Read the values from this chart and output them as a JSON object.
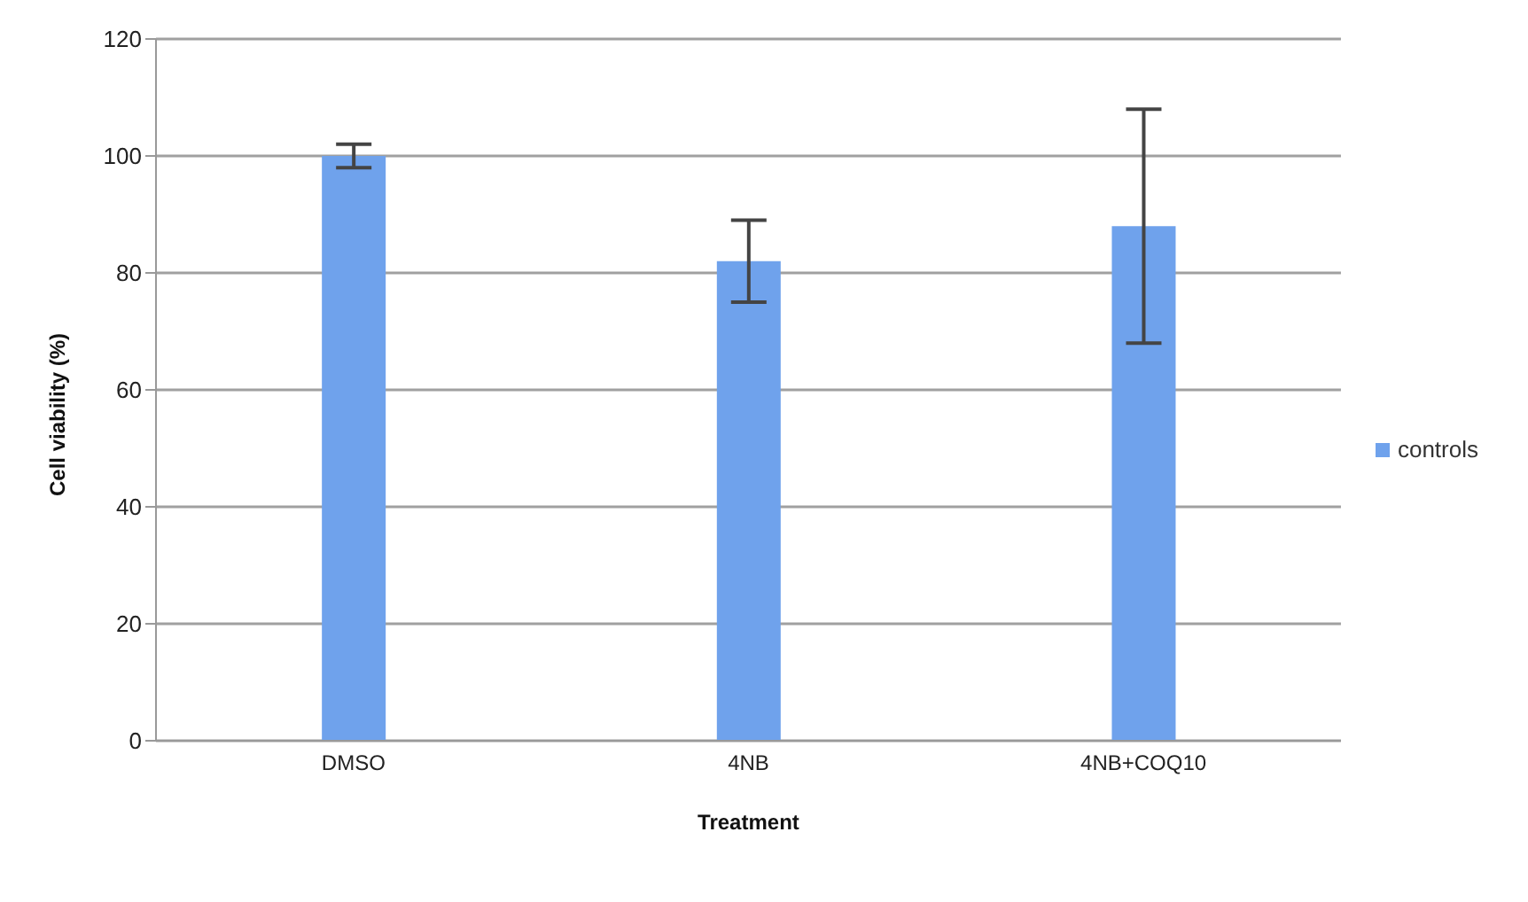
{
  "chart_data": {
    "type": "bar",
    "xlabel": "Treatment",
    "ylabel": "Cell viability (%)",
    "categories": [
      "DMSO",
      "4NB",
      "4NB+COQ10"
    ],
    "series": [
      {
        "name": "controls",
        "color": "#6fa2ec",
        "values": [
          100,
          82,
          88
        ],
        "errors": [
          2,
          7,
          20
        ]
      }
    ],
    "ylim": [
      0,
      120
    ],
    "yticks": [
      0,
      20,
      40,
      60,
      80,
      100,
      120
    ],
    "grid": "y",
    "legend": "right"
  }
}
